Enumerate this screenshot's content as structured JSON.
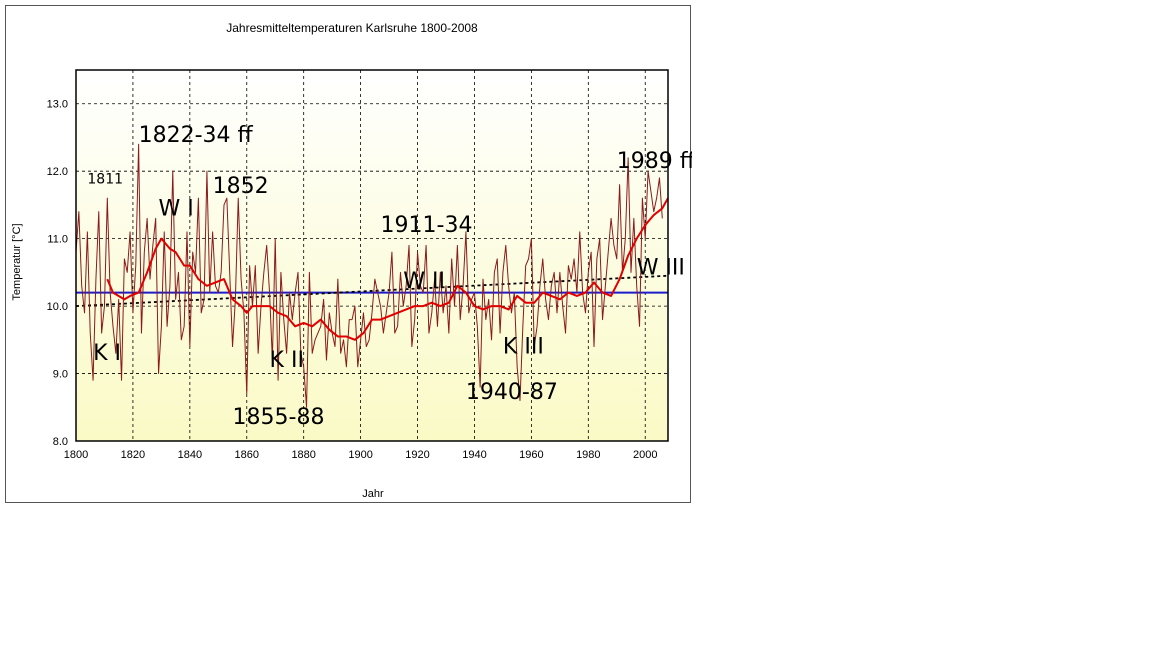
{
  "chart_data": {
    "type": "line",
    "title": "Jahresmitteltemperaturen Karlsruhe 1800-2008",
    "xlabel": "Jahr",
    "ylabel": "Temperatur [°C]",
    "xlim": [
      1800,
      2008
    ],
    "ylim": [
      8.0,
      13.5
    ],
    "xticks": [
      1800,
      1820,
      1840,
      1860,
      1880,
      1900,
      1920,
      1940,
      1960,
      1980,
      2000
    ],
    "yticks": [
      8.0,
      9.0,
      10.0,
      11.0,
      12.0,
      13.0
    ],
    "xtick_labels": [
      "1800",
      "1820",
      "1840",
      "1860",
      "1880",
      "1900",
      "1920",
      "1940",
      "1960",
      "1980",
      "2000"
    ],
    "ytick_labels": [
      "8.0",
      "9.0",
      "10.0",
      "11.0",
      "12.0",
      "13.0"
    ],
    "grid": true,
    "colors": {
      "annual": "#8b1a1a",
      "moving_average": "#e00000",
      "mean_line": "#1c1ccc",
      "trend": "#000000",
      "plot_bg_top": "#ffffff",
      "plot_bg_bottom": "#fafac6"
    },
    "mean_line_value": 10.2,
    "trend_line": {
      "x": [
        1800,
        2008
      ],
      "y": [
        10.0,
        10.45
      ]
    },
    "annual_years_start": 1800,
    "annual_values": [
      10.8,
      11.4,
      10.3,
      9.9,
      11.1,
      9.6,
      8.9,
      10.4,
      11.4,
      9.6,
      10.0,
      11.6,
      10.2,
      9.7,
      9.3,
      10.1,
      8.9,
      10.7,
      10.5,
      11.1,
      9.9,
      10.6,
      12.4,
      9.6,
      10.8,
      11.3,
      10.4,
      10.9,
      11.3,
      9.0,
      9.7,
      11.1,
      9.7,
      10.3,
      12.0,
      10.1,
      10.5,
      9.5,
      9.7,
      11.1,
      9.4,
      10.8,
      10.5,
      11.6,
      9.9,
      10.1,
      12.0,
      10.2,
      11.1,
      10.3,
      10.2,
      10.5,
      11.5,
      11.6,
      10.5,
      9.4,
      10.1,
      11.6,
      10.4,
      9.9,
      8.7,
      10.6,
      10.0,
      10.6,
      9.3,
      10.0,
      10.5,
      10.9,
      10.2,
      9.2,
      11.0,
      8.9,
      10.5,
      9.8,
      9.3,
      10.2,
      9.8,
      10.2,
      10.5,
      9.3,
      9.1,
      8.5,
      10.5,
      9.3,
      9.5,
      9.6,
      9.7,
      10.1,
      9.2,
      9.9,
      9.6,
      9.4,
      10.4,
      9.3,
      9.5,
      9.1,
      9.8,
      9.8,
      10.0,
      9.1,
      9.5,
      9.9,
      9.4,
      9.5,
      9.9,
      10.4,
      10.2,
      10.0,
      9.6,
      9.9,
      10.2,
      10.8,
      9.6,
      9.7,
      10.5,
      10.0,
      10.3,
      10.9,
      9.4,
      9.8,
      10.8,
      10.3,
      10.2,
      10.9,
      9.6,
      9.9,
      10.4,
      9.7,
      10.5,
      9.9,
      10.3,
      9.6,
      10.7,
      10.0,
      10.9,
      9.8,
      10.3,
      11.1,
      9.9,
      10.1,
      10.2,
      9.7,
      8.8,
      10.4,
      9.8,
      10.1,
      9.5,
      10.5,
      10.7,
      9.6,
      10.5,
      10.9,
      10.3,
      9.9,
      10.2,
      9.1,
      8.6,
      9.7,
      10.6,
      10.7,
      11.0,
      9.4,
      9.7,
      10.3,
      10.7,
      10.1,
      9.8,
      10.3,
      10.5,
      9.9,
      10.5,
      10.0,
      9.6,
      10.6,
      10.4,
      10.7,
      10.2,
      11.1,
      10.2,
      9.9,
      10.5,
      10.8,
      9.4,
      10.7,
      11.0,
      9.8,
      10.3,
      10.8,
      11.3,
      10.9,
      10.7,
      11.8,
      10.5,
      11.0,
      12.2,
      10.5,
      11.3,
      10.3,
      9.7,
      11.6,
      11.0,
      12.0,
      11.7,
      11.4,
      11.6,
      11.9,
      11.3
    ],
    "moving_average": {
      "years": [
        1811,
        1813,
        1815,
        1817,
        1819,
        1822,
        1825,
        1828,
        1830,
        1833,
        1835,
        1838,
        1840,
        1843,
        1846,
        1849,
        1852,
        1855,
        1858,
        1860,
        1862,
        1865,
        1868,
        1871,
        1874,
        1877,
        1880,
        1883,
        1886,
        1889,
        1892,
        1895,
        1898,
        1901,
        1904,
        1907,
        1910,
        1913,
        1916,
        1919,
        1922,
        1925,
        1928,
        1931,
        1934,
        1937,
        1940,
        1943,
        1946,
        1949,
        1952,
        1955,
        1958,
        1961,
        1964,
        1967,
        1970,
        1973,
        1976,
        1979,
        1982,
        1985,
        1988,
        1991,
        1994,
        1997,
        2000,
        2003,
        2006,
        2008
      ],
      "values": [
        10.4,
        10.2,
        10.15,
        10.1,
        10.15,
        10.2,
        10.5,
        10.85,
        11.0,
        10.85,
        10.8,
        10.6,
        10.6,
        10.4,
        10.3,
        10.35,
        10.4,
        10.1,
        10.0,
        9.9,
        10.0,
        10.0,
        10.0,
        9.9,
        9.85,
        9.7,
        9.75,
        9.7,
        9.8,
        9.65,
        9.55,
        9.55,
        9.5,
        9.6,
        9.8,
        9.8,
        9.85,
        9.9,
        9.95,
        10.0,
        10.0,
        10.05,
        10.0,
        10.05,
        10.3,
        10.2,
        10.0,
        9.95,
        10.0,
        10.0,
        9.95,
        10.15,
        10.05,
        10.05,
        10.2,
        10.15,
        10.1,
        10.2,
        10.15,
        10.2,
        10.35,
        10.2,
        10.15,
        10.4,
        10.75,
        11.0,
        11.2,
        11.35,
        11.45,
        11.6
      ]
    },
    "annotations": [
      {
        "text": "1822-34 ff",
        "x": 1822,
        "y": 12.43,
        "size": "big"
      },
      {
        "text": "1811",
        "x": 1804,
        "y": 11.82,
        "size": "small"
      },
      {
        "text": "W I",
        "x": 1829,
        "y": 11.34,
        "size": "big"
      },
      {
        "text": "1852",
        "x": 1848,
        "y": 11.68,
        "size": "big"
      },
      {
        "text": "K I",
        "x": 1806,
        "y": 9.2,
        "size": "big"
      },
      {
        "text": "K II",
        "x": 1868,
        "y": 9.1,
        "size": "big"
      },
      {
        "text": "1855-88",
        "x": 1855,
        "y": 8.25,
        "size": "big"
      },
      {
        "text": "1911-34",
        "x": 1907,
        "y": 11.1,
        "size": "big"
      },
      {
        "text": "W II",
        "x": 1915,
        "y": 10.27,
        "size": "big"
      },
      {
        "text": "K III",
        "x": 1950,
        "y": 9.3,
        "size": "big"
      },
      {
        "text": "1940-87",
        "x": 1937,
        "y": 8.62,
        "size": "big"
      },
      {
        "text": "1989 ff",
        "x": 1990,
        "y": 12.05,
        "size": "big"
      },
      {
        "text": "W  III",
        "x": 1997,
        "y": 10.47,
        "size": "big"
      }
    ]
  }
}
